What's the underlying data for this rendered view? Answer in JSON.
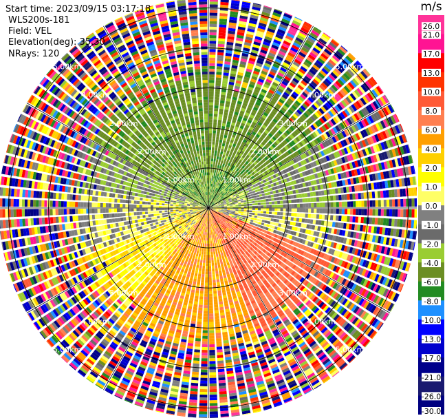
{
  "info": {
    "start_time": "Start time: 2023/09/15 03:17:18",
    "instrument": "WLS200s-181",
    "field": "Field: VEL",
    "elevation": "Elevation(deg): 35.30",
    "nrays": "NRays: 120"
  },
  "chart_data": {
    "type": "polar-ppi",
    "field": "VEL",
    "units": "m/s",
    "nrays": 120,
    "elevation_deg": 35.3,
    "max_range_km": 5.25,
    "range_rings_km": [
      1,
      2,
      3,
      4,
      5
    ],
    "ring_labels": [
      "1.00km",
      "2.00km",
      "3.00km",
      "4.00km",
      "5.00km"
    ],
    "spoke_angles_deg": [
      0,
      30,
      60,
      90,
      120,
      150,
      180,
      210,
      240,
      270,
      300,
      330
    ],
    "colorbar": {
      "title": "m/s",
      "ticks": [
        "26.0",
        "21.0",
        "17.0",
        "13.0",
        "10.0",
        "8.0",
        "6.0",
        "4.0",
        "2.0",
        "1.0",
        "0.0",
        "-1.0",
        "-2.0",
        "-4.0",
        "-6.0",
        "-8.0",
        "-10.0",
        "-13.0",
        "-17.0",
        "-21.0",
        "-26.0",
        "-30.0"
      ],
      "colors": [
        "#ff3399",
        "#ff1493",
        "#ff0000",
        "#ff3300",
        "#ff5a36",
        "#ff7f50",
        "#ff9f00",
        "#ffd000",
        "#ffff00",
        "#ffff66",
        "#808080",
        "#6b6b6b",
        "#9acd32",
        "#6b8e23",
        "#228b22",
        "#1e90ff",
        "#0000ff",
        "#0000cd",
        "#00008b",
        "#191970",
        "#000080"
      ]
    },
    "pattern": {
      "inner_clear_km": 0.9,
      "coherent_max_km": 3.5,
      "noise_start_km": 3.5,
      "sectors": [
        {
          "from_deg": 300,
          "to_deg": 60,
          "velocity": -5
        },
        {
          "from_deg": 60,
          "to_deg": 90,
          "velocity": -2
        },
        {
          "from_deg": 90,
          "to_deg": 110,
          "velocity": 0
        },
        {
          "from_deg": 110,
          "to_deg": 160,
          "velocity": 8
        },
        {
          "from_deg": 160,
          "to_deg": 220,
          "velocity": 5
        },
        {
          "from_deg": 220,
          "to_deg": 250,
          "velocity": 2
        },
        {
          "from_deg": 250,
          "to_deg": 280,
          "velocity": 0
        },
        {
          "from_deg": 280,
          "to_deg": 300,
          "velocity": -2
        }
      ]
    }
  }
}
